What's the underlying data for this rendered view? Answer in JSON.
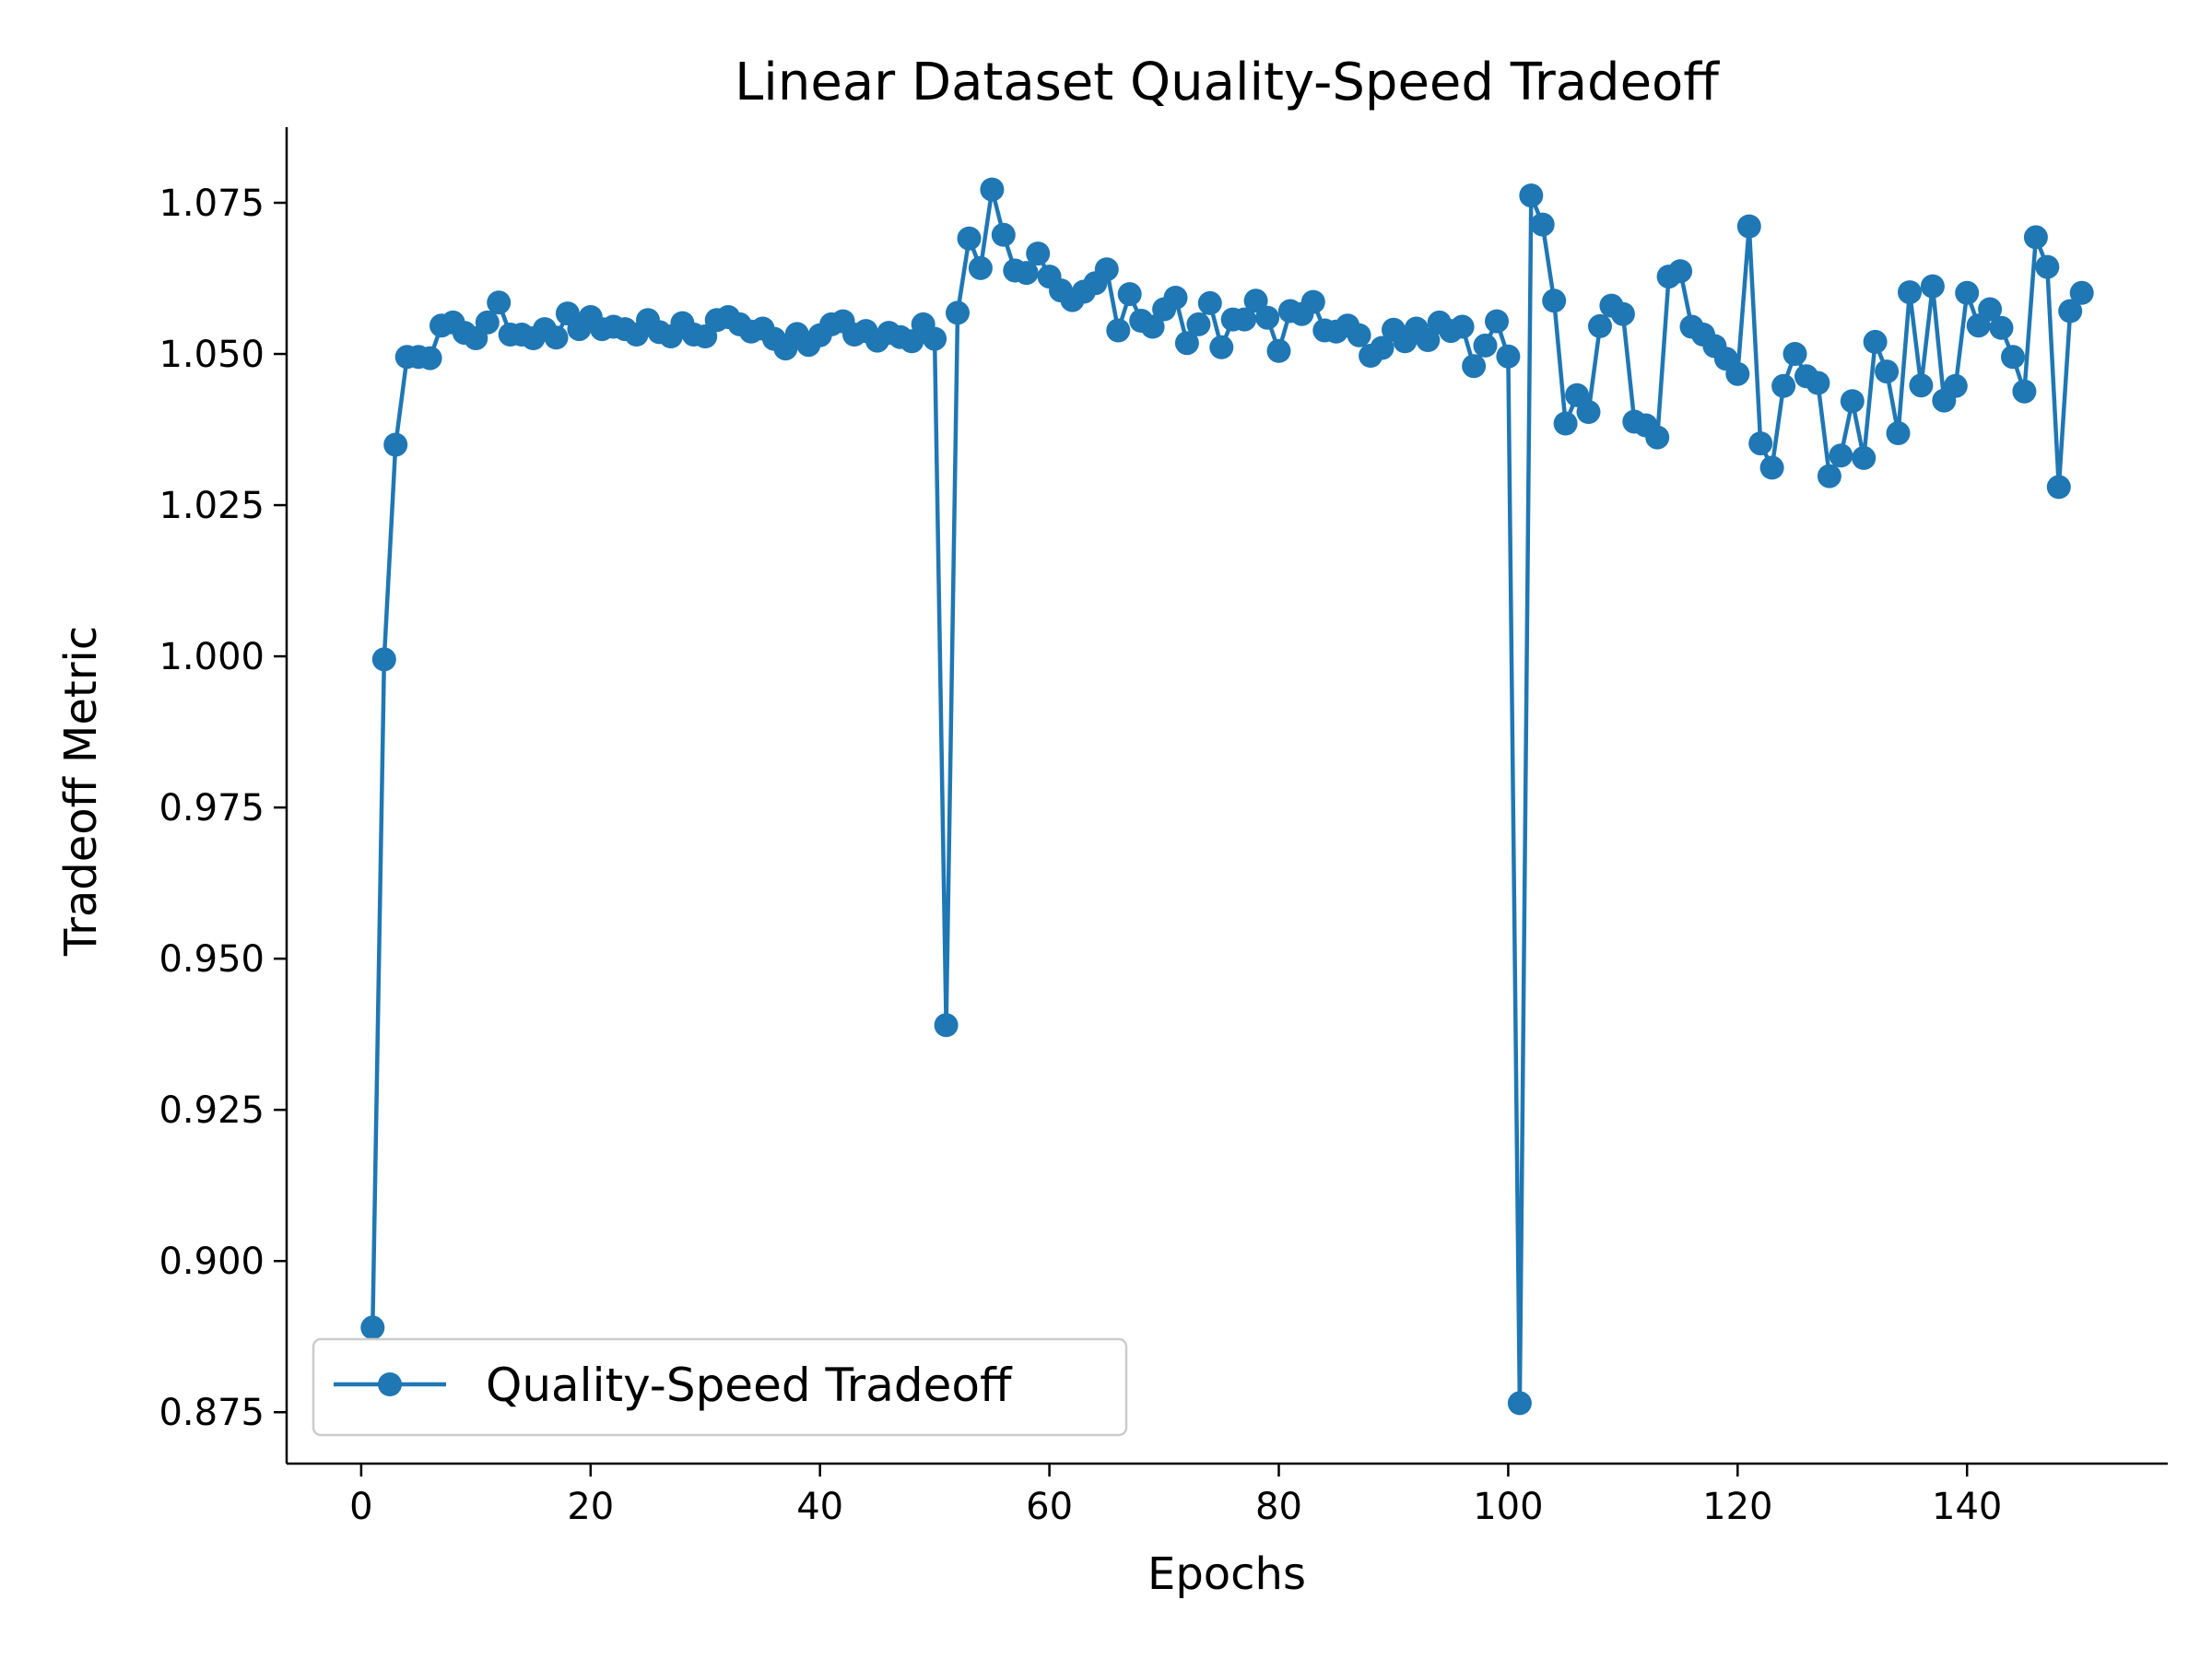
{
  "chart_data": {
    "type": "line",
    "title": "Linear Dataset Quality-Speed Tradeoff",
    "xlabel": "Epochs",
    "ylabel": "Tradeoff Metric",
    "xlim": [
      -6.5,
      157.5
    ],
    "ylim": [
      0.8665,
      1.0875
    ],
    "xticks": [
      0,
      20,
      40,
      60,
      80,
      100,
      120,
      140
    ],
    "yticks": [
      0.875,
      0.9,
      0.925,
      0.95,
      0.975,
      1.0,
      1.025,
      1.05,
      1.075
    ],
    "ytick_labels": [
      "0.875",
      "0.900",
      "0.925",
      "0.950",
      "0.975",
      "1.000",
      "1.025",
      "1.050",
      "1.075"
    ],
    "grid": false,
    "legend_position": "lower-left",
    "colors": {
      "series": "#1f77b4",
      "axis": "#000000"
    },
    "series": [
      {
        "name": "Quality-Speed Tradeoff",
        "marker": "circle",
        "x": [
          1,
          2,
          3,
          4,
          5,
          6,
          7,
          8,
          9,
          10,
          11,
          12,
          13,
          14,
          15,
          16,
          17,
          18,
          19,
          20,
          21,
          22,
          23,
          24,
          25,
          26,
          27,
          28,
          29,
          30,
          31,
          32,
          33,
          34,
          35,
          36,
          37,
          38,
          39,
          40,
          41,
          42,
          43,
          44,
          45,
          46,
          47,
          48,
          49,
          50,
          51,
          52,
          53,
          54,
          55,
          56,
          57,
          58,
          59,
          60,
          61,
          62,
          63,
          64,
          65,
          66,
          67,
          68,
          69,
          70,
          71,
          72,
          73,
          74,
          75,
          76,
          77,
          78,
          79,
          80,
          81,
          82,
          83,
          84,
          85,
          86,
          87,
          88,
          89,
          90,
          91,
          92,
          93,
          94,
          95,
          96,
          97,
          98,
          99,
          100,
          101,
          102,
          103,
          104,
          105,
          106,
          107,
          108,
          109,
          110,
          111,
          112,
          113,
          114,
          115,
          116,
          117,
          118,
          119,
          120,
          121,
          122,
          123,
          124,
          125,
          126,
          127,
          128,
          129,
          130,
          131,
          132,
          133,
          134,
          135,
          136,
          137,
          138,
          139,
          140,
          141,
          142,
          143,
          144,
          145,
          146,
          147,
          148,
          149,
          150
        ],
        "y": [
          0.889,
          0.9995,
          1.035,
          1.0495,
          1.0495,
          1.0493,
          1.0547,
          1.0552,
          1.0535,
          1.0526,
          1.0552,
          1.0585,
          1.0532,
          1.0532,
          1.0526,
          1.0541,
          1.0527,
          1.0567,
          1.0541,
          1.0561,
          1.0541,
          1.0545,
          1.0541,
          1.0532,
          1.0556,
          1.0536,
          1.0529,
          1.0551,
          1.0532,
          1.0529,
          1.0556,
          1.0561,
          1.0549,
          1.0537,
          1.0542,
          1.0525,
          1.0509,
          1.0533,
          1.0515,
          1.0531,
          1.0549,
          1.0554,
          1.0532,
          1.0538,
          1.0522,
          1.0535,
          1.0528,
          1.0521,
          1.0549,
          1.0525,
          0.939,
          1.0568,
          1.0691,
          1.0642,
          1.0772,
          1.0697,
          1.0638,
          1.0634,
          1.0666,
          1.0628,
          1.0605,
          1.0589,
          1.0603,
          1.0617,
          1.064,
          1.0539,
          1.0599,
          1.0555,
          1.0545,
          1.0574,
          1.0593,
          1.0518,
          1.0549,
          1.0584,
          1.0511,
          1.0557,
          1.0557,
          1.0588,
          1.056,
          1.0505,
          1.0571,
          1.0566,
          1.0586,
          1.0539,
          1.0537,
          1.0547,
          1.0531,
          1.0497,
          1.051,
          1.054,
          1.0521,
          1.0542,
          1.0523,
          1.0552,
          1.0538,
          1.0545,
          1.048,
          1.0514,
          1.0554,
          1.0496,
          0.8765,
          1.0762,
          1.0714,
          1.0588,
          1.0385,
          1.0432,
          1.0404,
          1.0546,
          1.058,
          1.0566,
          1.0388,
          1.0382,
          1.0362,
          1.0628,
          1.0637,
          1.0545,
          1.0532,
          1.0513,
          1.0492,
          1.0467,
          1.0711,
          1.0352,
          1.0312,
          1.0447,
          1.05,
          1.0463,
          1.0452,
          1.0298,
          1.0332,
          1.0422,
          1.0328,
          1.052,
          1.0471,
          1.0369,
          1.0602,
          1.0448,
          1.0612,
          1.0423,
          1.0447,
          1.0601,
          1.0547,
          1.0574,
          1.0543,
          1.0495,
          1.0438,
          1.0693,
          1.0644,
          1.028,
          1.0571,
          1.0601
        ]
      }
    ]
  }
}
